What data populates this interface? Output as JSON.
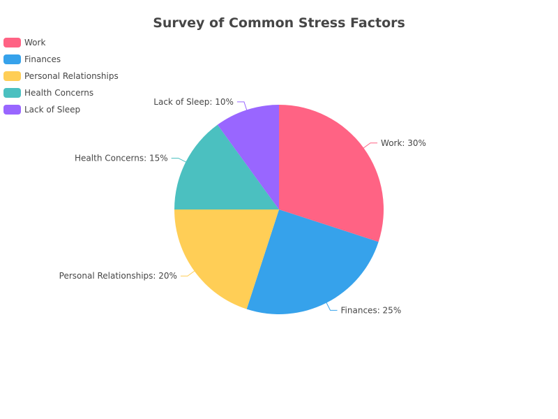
{
  "chart_data": {
    "type": "pie",
    "title": "Survey of Common Stress Factors",
    "slices": [
      {
        "label": "Work",
        "value": 30,
        "color": "#ff6384",
        "display": "Work: 30%"
      },
      {
        "label": "Finances",
        "value": 25,
        "color": "#36a2eb",
        "display": "Finances: 25%"
      },
      {
        "label": "Personal Relationships",
        "value": 20,
        "color": "#ffce56",
        "display": "Personal Relationships: 20%"
      },
      {
        "label": "Health Concerns",
        "value": 15,
        "color": "#4bc0c0",
        "display": "Health Concerns: 15%"
      },
      {
        "label": "Lack of Sleep",
        "value": 10,
        "color": "#9966ff",
        "display": "Lack of Sleep: 10%"
      }
    ],
    "legend_position": "top-left"
  }
}
